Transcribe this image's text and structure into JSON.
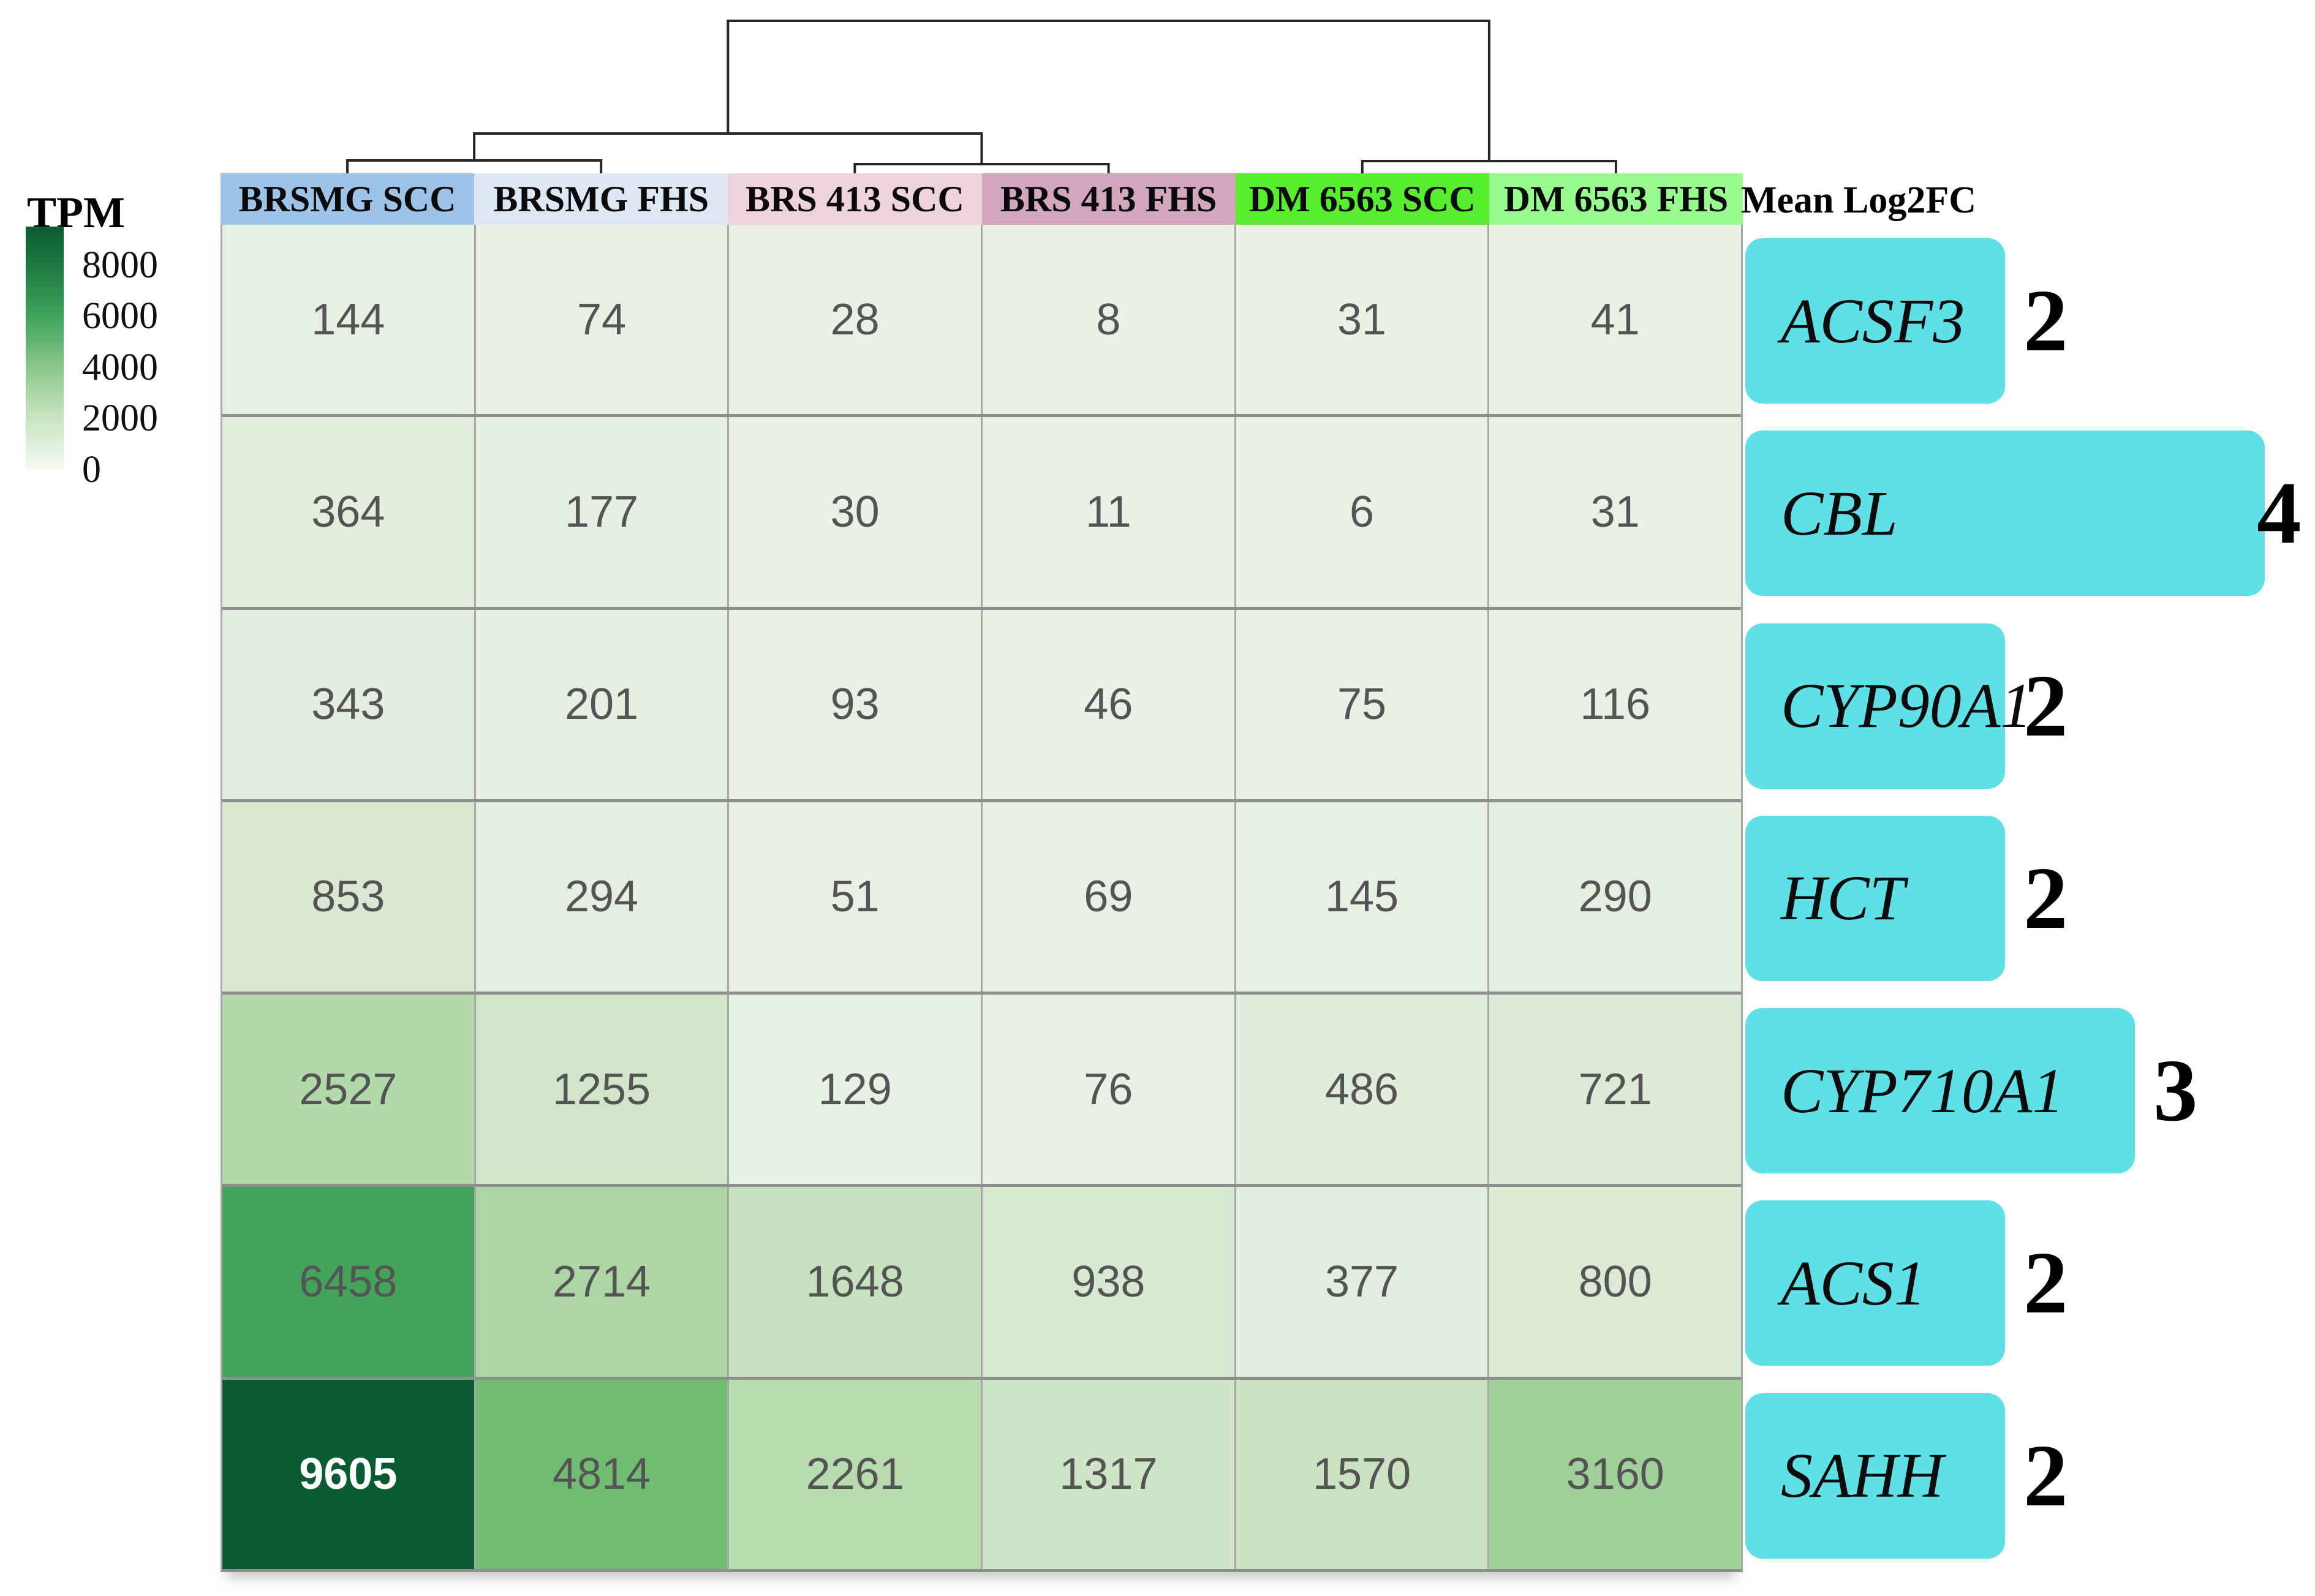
{
  "chart_data": {
    "type": "heatmap",
    "legend": {
      "title": "TPM",
      "ticks": [
        "8000",
        "6000",
        "4000",
        "2000",
        "0"
      ],
      "scale_top_value": 9500,
      "scale_bottom_value": 0
    },
    "columns": [
      {
        "label": "BRSMG SCC",
        "header_color": "#9dc3e8"
      },
      {
        "label": "BRSMG FHS",
        "header_color": "#dde8f4"
      },
      {
        "label": "BRS 413 SCC",
        "header_color": "#eed3dd"
      },
      {
        "label": "BRS 413 FHS",
        "header_color": "#d2a6bc"
      },
      {
        "label": "DM 6563 SCC",
        "header_color": "#57ef2d"
      },
      {
        "label": "DM 6563 FHS",
        "header_color": "#98fb8e"
      }
    ],
    "rows": [
      {
        "gene": "ACSF3",
        "mean_log2fc": 2,
        "values": [
          144,
          74,
          28,
          8,
          31,
          41
        ]
      },
      {
        "gene": "CBL",
        "mean_log2fc": 4,
        "values": [
          364,
          177,
          30,
          11,
          6,
          31
        ]
      },
      {
        "gene": "CYP90A1",
        "mean_log2fc": 2,
        "values": [
          343,
          201,
          93,
          46,
          75,
          116
        ]
      },
      {
        "gene": "HCT",
        "mean_log2fc": 2,
        "values": [
          853,
          294,
          51,
          69,
          145,
          290
        ]
      },
      {
        "gene": "CYP710A1",
        "mean_log2fc": 3,
        "values": [
          2527,
          1255,
          129,
          76,
          486,
          721
        ]
      },
      {
        "gene": "ACS1",
        "mean_log2fc": 2,
        "values": [
          6458,
          2714,
          1648,
          938,
          377,
          800
        ]
      },
      {
        "gene": "SAHH",
        "mean_log2fc": 2,
        "values": [
          9605,
          4814,
          2261,
          1317,
          1570,
          3160
        ]
      }
    ],
    "bar_annotation": {
      "label": "Mean Log2FC",
      "bar_color": "#5ee0e6"
    },
    "dendrogram": {
      "newick": "(((BRSMG SCC,BRSMG FHS),(BRS 413 SCC,BRS 413 FHS)),(DM 6563 SCC,DM 6563 FHS));",
      "line_color": "#262626"
    },
    "colormap_stops": [
      [
        0,
        "#eaf2e6"
      ],
      [
        500,
        "#e0edda"
      ],
      [
        1000,
        "#d6e8cf"
      ],
      [
        1600,
        "#c9e2c0"
      ],
      [
        2300,
        "#b8dcae"
      ],
      [
        3200,
        "#a0d099"
      ],
      [
        4000,
        "#8ac886"
      ],
      [
        4800,
        "#71bc73"
      ],
      [
        5800,
        "#53ab63"
      ],
      [
        6500,
        "#42a35b"
      ],
      [
        7500,
        "#2b8c4a"
      ],
      [
        8500,
        "#19723c"
      ],
      [
        9605,
        "#0a5b30"
      ]
    ],
    "value_text_color": "#545454",
    "value_text_color_dark_bg": "#ffffff"
  }
}
